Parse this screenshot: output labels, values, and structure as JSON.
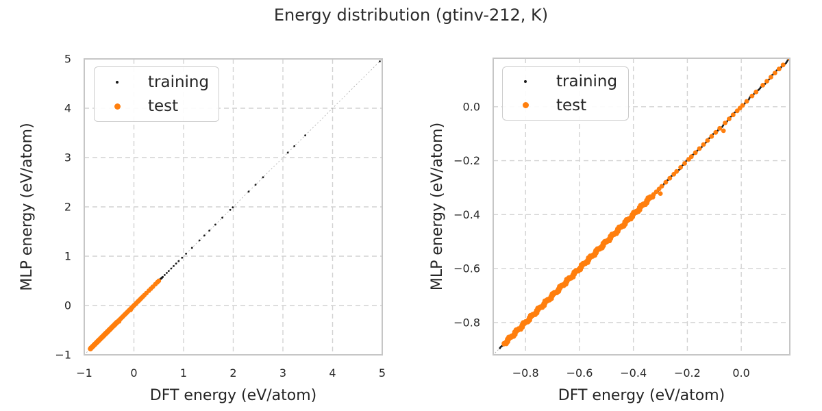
{
  "chart_data": {
    "type": "scatter",
    "title": "Energy distribution (gtinv-212, K)",
    "grid": true,
    "identity_line": true,
    "legend_position": "upper left",
    "colors": {
      "training": "#1a1a1a",
      "test": "#ff7f0e",
      "grid": "#d2d2d2",
      "spine": "#c6c6c6",
      "identity": "#b3b3b3",
      "text": "#262626"
    },
    "series": [
      {
        "name": "training",
        "marker_size_px": 1.4,
        "diagonal_bands": [
          {
            "from": -0.895,
            "to": 0.58,
            "count": 420,
            "jitter": 0.002
          }
        ],
        "points": [
          [
            0.62,
            0.62
          ],
          [
            0.66,
            0.66
          ],
          [
            0.7,
            0.7
          ],
          [
            0.75,
            0.75
          ],
          [
            0.8,
            0.8
          ],
          [
            0.85,
            0.85
          ],
          [
            0.9,
            0.9
          ],
          [
            0.97,
            0.97
          ],
          [
            1.05,
            1.05
          ],
          [
            1.17,
            1.17
          ],
          [
            1.32,
            1.32
          ],
          [
            1.42,
            1.42
          ],
          [
            1.52,
            1.52
          ],
          [
            1.64,
            1.64
          ],
          [
            1.78,
            1.78
          ],
          [
            1.94,
            1.94
          ],
          [
            1.99,
            1.99
          ],
          [
            2.31,
            2.31
          ],
          [
            2.45,
            2.45
          ],
          [
            2.6,
            2.6
          ],
          [
            3.1,
            3.1
          ],
          [
            3.23,
            3.23
          ],
          [
            3.45,
            3.45
          ],
          [
            4.95,
            4.95
          ]
        ]
      },
      {
        "name": "test",
        "marker_size_px": 3.4,
        "diagonal_bands": [
          {
            "from": -0.88,
            "to": -0.33,
            "count": 460,
            "jitter": 0.0045
          }
        ],
        "points": [
          [
            -0.325,
            -0.325
          ],
          [
            -0.315,
            -0.315
          ],
          [
            -0.305,
            -0.305
          ],
          [
            -0.295,
            -0.295
          ],
          [
            -0.28,
            -0.28
          ],
          [
            -0.265,
            -0.265
          ],
          [
            -0.25,
            -0.25
          ],
          [
            -0.24,
            -0.24
          ],
          [
            -0.225,
            -0.225
          ],
          [
            -0.21,
            -0.21
          ],
          [
            -0.3,
            -0.322
          ],
          [
            -0.195,
            -0.195
          ],
          [
            -0.185,
            -0.185
          ],
          [
            -0.17,
            -0.17
          ],
          [
            -0.155,
            -0.155
          ],
          [
            -0.14,
            -0.14
          ],
          [
            -0.125,
            -0.125
          ],
          [
            -0.11,
            -0.11
          ],
          [
            -0.095,
            -0.095
          ],
          [
            -0.08,
            -0.08
          ],
          [
            -0.066,
            -0.089
          ],
          [
            -0.06,
            -0.06
          ],
          [
            -0.045,
            -0.045
          ],
          [
            -0.03,
            -0.03
          ],
          [
            -0.015,
            -0.015
          ],
          [
            -0.005,
            -0.005
          ],
          [
            0.005,
            0.005
          ],
          [
            0.02,
            0.02
          ],
          [
            0.04,
            0.04
          ],
          [
            0.055,
            0.055
          ],
          [
            0.08,
            0.08
          ],
          [
            0.095,
            0.095
          ],
          [
            0.11,
            0.11
          ],
          [
            0.125,
            0.125
          ],
          [
            0.14,
            0.14
          ],
          [
            0.155,
            0.155
          ],
          [
            0.18,
            0.18
          ],
          [
            0.21,
            0.21
          ],
          [
            0.25,
            0.25
          ],
          [
            0.3,
            0.3
          ],
          [
            0.34,
            0.34
          ],
          [
            0.38,
            0.38
          ],
          [
            0.43,
            0.43
          ],
          [
            0.47,
            0.47
          ],
          [
            0.5,
            0.5
          ]
        ]
      }
    ],
    "views": [
      {
        "xlabel": "DFT energy (eV/atom)",
        "ylabel": "MLP energy (eV/atom)",
        "xlim": [
          -1,
          5
        ],
        "ylim": [
          -1,
          5
        ],
        "xticks": [
          -1,
          0,
          1,
          2,
          3,
          4,
          5
        ],
        "xtick_labels": [
          "−1",
          "0",
          "1",
          "2",
          "3",
          "4",
          "5"
        ],
        "yticks": [
          -1,
          0,
          1,
          2,
          3,
          4,
          5
        ],
        "ytick_labels": [
          "−1",
          "0",
          "1",
          "2",
          "3",
          "4",
          "5"
        ]
      },
      {
        "xlabel": "DFT energy (eV/atom)",
        "ylabel": "MLP energy (eV/atom)",
        "xlim": [
          -0.92,
          0.18
        ],
        "ylim": [
          -0.92,
          0.18
        ],
        "xticks": [
          -0.8,
          -0.6,
          -0.4,
          -0.2,
          0.0
        ],
        "xtick_labels": [
          "−0.8",
          "−0.6",
          "−0.4",
          "−0.2",
          "0.0"
        ],
        "yticks": [
          -0.8,
          -0.6,
          -0.4,
          -0.2,
          0.0
        ],
        "ytick_labels": [
          "−0.8",
          "−0.6",
          "−0.4",
          "−0.2",
          "0.0"
        ]
      }
    ]
  }
}
